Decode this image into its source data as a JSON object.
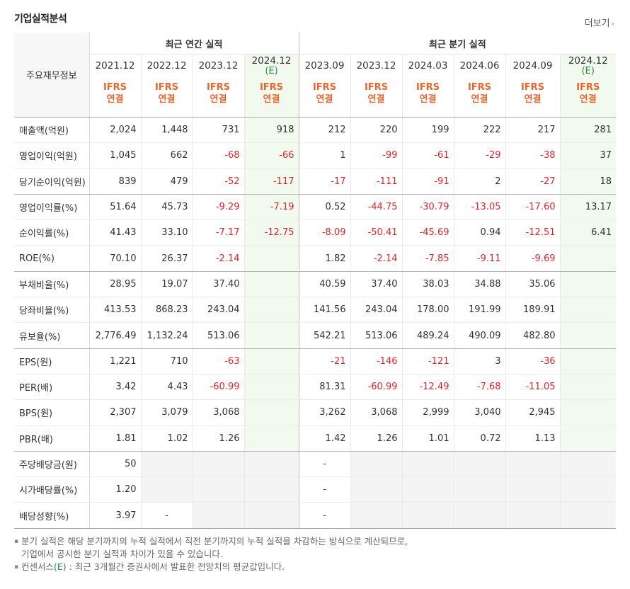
{
  "title": "기업실적분석",
  "more_label": "더보기",
  "more_chevron": "›",
  "header": {
    "label_col": "주요재무정보",
    "annual_group": "최근 연간 실적",
    "quarter_group": "최근 분기 실적",
    "annual_periods": [
      {
        "year": "2021.12",
        "est": ""
      },
      {
        "year": "2022.12",
        "est": ""
      },
      {
        "year": "2023.12",
        "est": ""
      },
      {
        "year": "2024.12",
        "est": "(E)"
      }
    ],
    "quarter_periods": [
      {
        "year": "2023.09",
        "est": ""
      },
      {
        "year": "2023.12",
        "est": ""
      },
      {
        "year": "2024.03",
        "est": ""
      },
      {
        "year": "2024.06",
        "est": ""
      },
      {
        "year": "2024.09",
        "est": ""
      },
      {
        "year": "2024.12",
        "est": "(E)"
      }
    ],
    "ifrs_line1": "IFRS",
    "ifrs_line2": "연결"
  },
  "rows": [
    {
      "label": "매출액(억원)",
      "values": [
        "2,024",
        "1,448",
        "731",
        "918",
        "212",
        "220",
        "199",
        "222",
        "217",
        "281"
      ]
    },
    {
      "label": "영업이익(억원)",
      "values": [
        "1,045",
        "662",
        "-68",
        "-66",
        "1",
        "-99",
        "-61",
        "-29",
        "-38",
        "37"
      ]
    },
    {
      "label": "당기순이익(억원)",
      "values": [
        "839",
        "479",
        "-52",
        "-117",
        "-17",
        "-111",
        "-91",
        "2",
        "-27",
        "18"
      ]
    },
    {
      "label": "영업이익률(%)",
      "values": [
        "51.64",
        "45.73",
        "-9.29",
        "-7.19",
        "0.52",
        "-44.75",
        "-30.79",
        "-13.05",
        "-17.60",
        "13.17"
      ]
    },
    {
      "label": "순이익률(%)",
      "values": [
        "41.43",
        "33.10",
        "-7.17",
        "-12.75",
        "-8.09",
        "-50.41",
        "-45.69",
        "0.94",
        "-12.51",
        "6.41"
      ]
    },
    {
      "label": "ROE(%)",
      "values": [
        "70.10",
        "26.37",
        "-2.14",
        "",
        "1.82",
        "-2.14",
        "-7.85",
        "-9.11",
        "-9.69",
        ""
      ]
    },
    {
      "label": "부채비율(%)",
      "values": [
        "28.95",
        "19.07",
        "37.40",
        "",
        "40.59",
        "37.40",
        "38.03",
        "34.88",
        "35.06",
        ""
      ]
    },
    {
      "label": "당좌비율(%)",
      "values": [
        "413.53",
        "868.23",
        "243.04",
        "",
        "141.56",
        "243.04",
        "178.00",
        "191.99",
        "189.91",
        ""
      ]
    },
    {
      "label": "유보율(%)",
      "values": [
        "2,776.49",
        "1,132.24",
        "513.06",
        "",
        "542.21",
        "513.06",
        "489.24",
        "490.09",
        "482.80",
        ""
      ]
    },
    {
      "label": "EPS(원)",
      "values": [
        "1,221",
        "710",
        "-63",
        "",
        "-21",
        "-146",
        "-121",
        "3",
        "-36",
        ""
      ]
    },
    {
      "label": "PER(배)",
      "values": [
        "3.42",
        "4.43",
        "-60.99",
        "",
        "81.31",
        "-60.99",
        "-12.49",
        "-7.68",
        "-11.05",
        ""
      ]
    },
    {
      "label": "BPS(원)",
      "values": [
        "2,307",
        "3,079",
        "3,068",
        "",
        "3,262",
        "3,068",
        "2,999",
        "3,040",
        "2,945",
        ""
      ]
    },
    {
      "label": "PBR(배)",
      "values": [
        "1.81",
        "1.02",
        "1.26",
        "",
        "1.42",
        "1.26",
        "1.01",
        "0.72",
        "1.13",
        ""
      ]
    },
    {
      "label": "주당배당금(원)",
      "values": [
        "50",
        "",
        "",
        "",
        "-",
        "",
        "",
        "",
        "",
        ""
      ]
    },
    {
      "label": "시가배당률(%)",
      "values": [
        "1.20",
        "",
        "",
        "",
        "-",
        "",
        "",
        "",
        "",
        ""
      ]
    },
    {
      "label": "배당성향(%)",
      "values": [
        "3.97",
        "-",
        "",
        "",
        "-",
        "",
        "",
        "",
        "",
        ""
      ]
    }
  ],
  "notes": {
    "line1": "분기 실적은 해당 분기까지의 누적 실적에서 직전 분기까지의 누적 실적을 차감하는 방식으로 계산되므로,",
    "line2": "기업에서 공시한 분기 실적과 차이가 있을 수 있습니다.",
    "line3_pre": "컨센서스",
    "line3_e": "(E)",
    "line3_post": " : 최근 3개월간 증권사에서 발표한 전망치의 평균값입니다."
  },
  "colors": {
    "negative": "#e0262a",
    "ifrs": "#e8652c",
    "estimate": "#2e8b40",
    "estimate_bg": "#f2f9ef"
  }
}
